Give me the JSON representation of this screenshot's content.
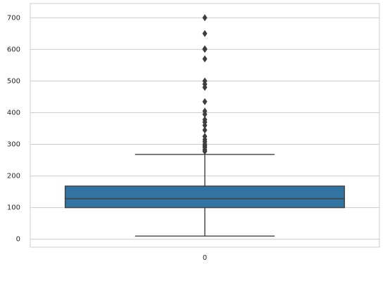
{
  "chart_data": {
    "type": "box",
    "categories": [
      "0"
    ],
    "boxes": [
      {
        "whislo": 10,
        "q1": 100,
        "med": 128,
        "q3": 168,
        "whishi": 268,
        "fliers": [
          278,
          283,
          290,
          295,
          300,
          308,
          315,
          325,
          345,
          360,
          370,
          378,
          395,
          405,
          435,
          480,
          490,
          500,
          570,
          600,
          602,
          650,
          700
        ]
      }
    ],
    "color": "#3274a1",
    "ylim": [
      -25,
      745
    ],
    "yticks": [
      0,
      100,
      200,
      300,
      400,
      500,
      600,
      700
    ],
    "grid": true
  }
}
